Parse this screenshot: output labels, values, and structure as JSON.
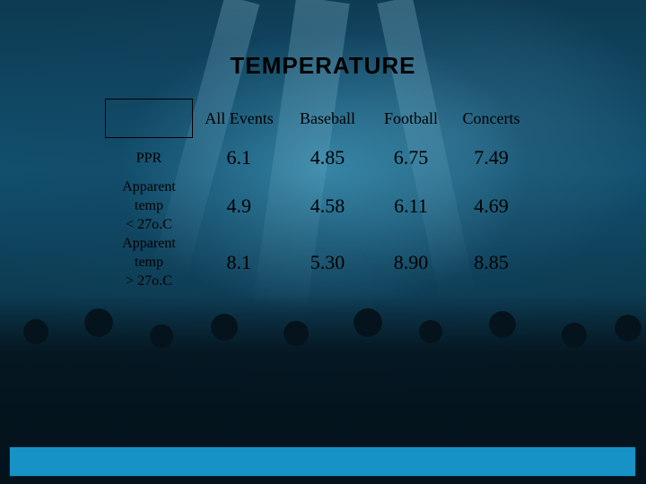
{
  "title": "TEMPERATURE",
  "table": {
    "columns": [
      "All Events",
      "Baseball",
      "Football",
      "Concerts"
    ],
    "rows": [
      {
        "label": "PPR",
        "values": [
          "6.1",
          "4.85",
          "6.75",
          "7.49"
        ]
      },
      {
        "label_lines": [
          "Apparent",
          "temp",
          "< 27o.C"
        ],
        "values": [
          "4.9",
          "4.58",
          "6.11",
          "4.69"
        ]
      },
      {
        "label_lines": [
          "Apparent",
          "temp",
          "> 27o.C"
        ],
        "values": [
          "8.1",
          "5.30",
          "8.90",
          "8.85"
        ]
      }
    ]
  },
  "colors": {
    "background": "#0e3a52",
    "footer_bar": "#1692c6",
    "text": "#000000"
  }
}
